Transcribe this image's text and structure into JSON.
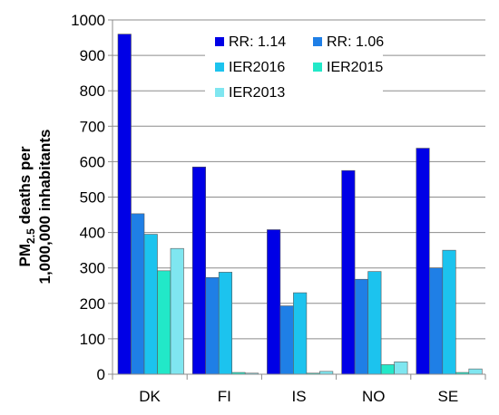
{
  "chart_data": {
    "type": "bar",
    "ylabel_line1_prefix": "PM",
    "ylabel_line1_subscript": "2.5",
    "ylabel_line1_suffix": " deaths per",
    "ylabel_line2": "1,000,000 inhabitants",
    "xlabel": "",
    "ylim": [
      0,
      1000
    ],
    "yticks": [
      0,
      100,
      200,
      300,
      400,
      500,
      600,
      700,
      800,
      900,
      1000
    ],
    "grid": true,
    "legend_placement": "top-center",
    "categories": [
      "DK",
      "FI",
      "IS",
      "NO",
      "SE"
    ],
    "series": [
      {
        "name": "RR: 1.14",
        "color": "#0000e6",
        "values": [
          960,
          585,
          408,
          575,
          638
        ]
      },
      {
        "name": "RR: 1.06",
        "color": "#1f7fe6",
        "values": [
          453,
          273,
          193,
          268,
          300
        ]
      },
      {
        "name": "IER2016",
        "color": "#1cc3ee",
        "values": [
          395,
          288,
          230,
          290,
          350
        ]
      },
      {
        "name": "IER2015",
        "color": "#22e8c8",
        "values": [
          292,
          5,
          3,
          27,
          5
        ]
      },
      {
        "name": "IER2013",
        "color": "#7fe6f0",
        "values": [
          355,
          3,
          8,
          35,
          15
        ]
      }
    ]
  }
}
